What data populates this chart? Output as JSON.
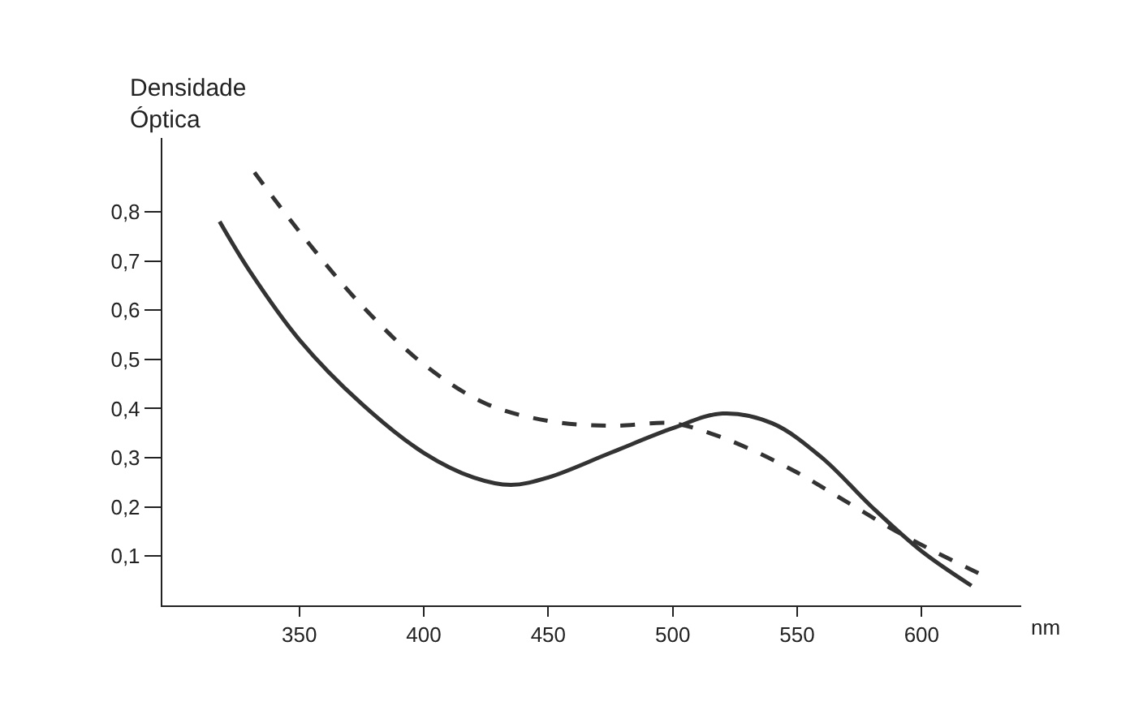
{
  "chart_data": {
    "type": "line",
    "xlabel": "nm",
    "ylabel": "Densidade\nÓptica",
    "xlim": [
      295,
      640
    ],
    "ylim": [
      0,
      0.95
    ],
    "xticks": [
      350,
      400,
      450,
      500,
      550,
      600
    ],
    "yticks": [
      {
        "value": 0.1,
        "label": "0,1"
      },
      {
        "value": 0.2,
        "label": "0,2"
      },
      {
        "value": 0.3,
        "label": "0,3"
      },
      {
        "value": 0.4,
        "label": "0,4"
      },
      {
        "value": 0.5,
        "label": "0,5"
      },
      {
        "value": 0.6,
        "label": "0,6"
      },
      {
        "value": 0.7,
        "label": "0,7"
      },
      {
        "value": 0.8,
        "label": "0,8"
      }
    ],
    "marker": "none",
    "series": [
      {
        "color": "#333333",
        "line_style": "solid",
        "x": [
          318,
          330,
          350,
          375,
          400,
          420,
          435,
          450,
          475,
          500,
          520,
          540,
          560,
          580,
          600,
          620
        ],
        "values": [
          0.78,
          0.68,
          0.54,
          0.41,
          0.31,
          0.26,
          0.245,
          0.26,
          0.31,
          0.36,
          0.39,
          0.37,
          0.3,
          0.2,
          0.11,
          0.04
        ]
      },
      {
        "color": "#333333",
        "line_style": "dashed",
        "x": [
          332,
          350,
          375,
          400,
          425,
          450,
          475,
          500,
          515,
          530,
          550,
          570,
          590,
          605,
          625
        ],
        "values": [
          0.88,
          0.76,
          0.61,
          0.49,
          0.41,
          0.375,
          0.365,
          0.37,
          0.35,
          0.32,
          0.27,
          0.21,
          0.15,
          0.11,
          0.06
        ]
      }
    ]
  }
}
